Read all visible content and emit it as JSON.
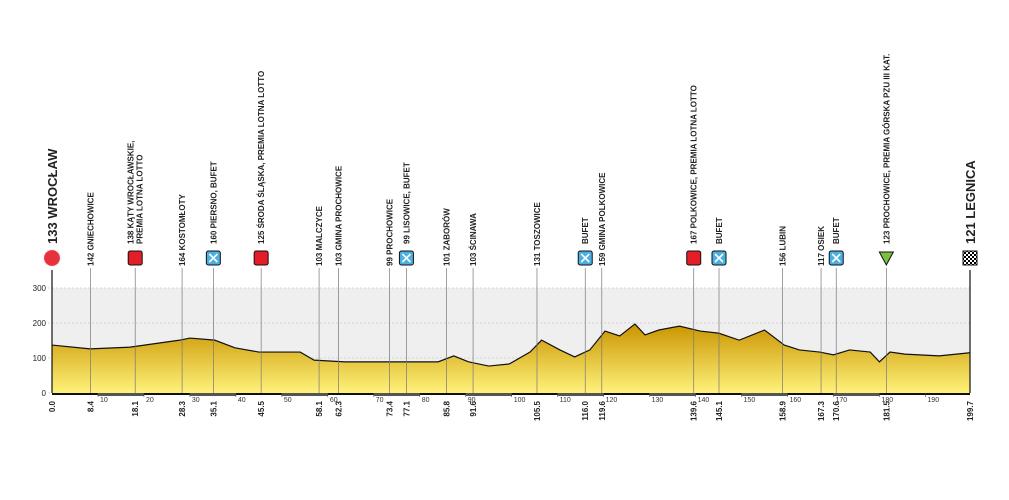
{
  "chart_data": {
    "type": "area",
    "xlim": [
      0,
      199.7
    ],
    "ylim": [
      0,
      300
    ],
    "yticks": [
      0,
      100,
      200,
      300
    ],
    "xticks": [
      10,
      20,
      30,
      40,
      50,
      60,
      70,
      80,
      90,
      100,
      110,
      120,
      130,
      140,
      150,
      160,
      170,
      180,
      190
    ],
    "color": "#d9a700",
    "x": [
      0,
      8.3,
      17,
      27.8,
      30,
      35.4,
      39.8,
      45,
      54,
      57,
      63.7,
      73.5,
      80,
      84,
      87.4,
      90.6,
      95,
      99.5,
      104,
      106.5,
      110.5,
      113.7,
      117,
      120.3,
      123.5,
      126.8,
      129,
      132,
      136.5,
      141,
      145,
      149.5,
      155,
      159.3,
      162.6,
      167,
      170,
      173.5,
      178,
      180,
      182.3,
      185.5,
      193,
      199.7
    ],
    "values": [
      137,
      126,
      131,
      151,
      157,
      151,
      129,
      117,
      117,
      94,
      89,
      89,
      89,
      89,
      106,
      89,
      77,
      83,
      117,
      151,
      123,
      103,
      123,
      177,
      163,
      197,
      166,
      180,
      191,
      177,
      171,
      151,
      180,
      137,
      123,
      117,
      109,
      123,
      117,
      89,
      117,
      111,
      106,
      115
    ],
    "waypoints": [
      {
        "km": {
          "value": 0,
          "label": "0.0"
        },
        "label": [
          "133 WROCŁAW"
        ],
        "marker": "start"
      },
      {
        "km": 8.4,
        "label": [
          "142 GNIECHOWICE"
        ]
      },
      {
        "km": 18.1,
        "label": [
          "138 KĄTY WROCŁAWSKIE,",
          "PREMIA LOTNA LOTTO"
        ],
        "marker": "sprint"
      },
      {
        "km": 28.3,
        "label": [
          "164 KOSTOMŁOTY"
        ]
      },
      {
        "km": 35.1,
        "label": [
          "160 PIERSNO, BUFET"
        ],
        "marker": "feed"
      },
      {
        "km": 45.5,
        "label": [
          "125 ŚRODA ŚLĄSKA, PREMIA LOTNA LOTTO"
        ],
        "marker": "sprint"
      },
      {
        "km": 58.1,
        "label": [
          "103 MALCZYCE"
        ]
      },
      {
        "km": 62.3,
        "label": [
          "103 GMINA PROCHOWICE"
        ]
      },
      {
        "km": 73.4,
        "label": [
          "99 PROCHOWICE"
        ]
      },
      {
        "km": 77.1,
        "label": [
          "99 LISOWICE, BUFET"
        ],
        "marker": "feed"
      },
      {
        "km": 85.8,
        "label": [
          "101 ZABORÓW"
        ]
      },
      {
        "km": 91.6,
        "label": [
          "103 ŚCINAWA"
        ]
      },
      {
        "km": 105.5,
        "label": [
          "131 TOSZOWICE"
        ]
      },
      {
        "km": {
          "value": 116,
          "label": "116.0"
        },
        "label": [
          "BUFET"
        ],
        "marker": "feed"
      },
      {
        "km": 119.6,
        "label": [
          "159 GMINA POLKOWICE"
        ]
      },
      {
        "km": 139.6,
        "label": [
          "167 POLKOWICE, PREMIA LOTNA LOTTO"
        ],
        "marker": "sprint"
      },
      {
        "km": 145.1,
        "label": [
          "BUFET"
        ],
        "marker": "feed"
      },
      {
        "km": 158.9,
        "label": [
          "156 LUBIN"
        ]
      },
      {
        "km": 167.3,
        "label": [
          "117 OSIEK"
        ]
      },
      {
        "km": 170.6,
        "label": [
          "BUFET"
        ],
        "marker": "feed"
      },
      {
        "km": 181.5,
        "label": [
          "123 PROCHOWICE, PREMIA GÓRSKA PZU III KAT."
        ],
        "marker": "climb"
      },
      {
        "km": 199.7,
        "label": [
          "121 LEGNICA"
        ],
        "marker": "finish"
      }
    ]
  }
}
